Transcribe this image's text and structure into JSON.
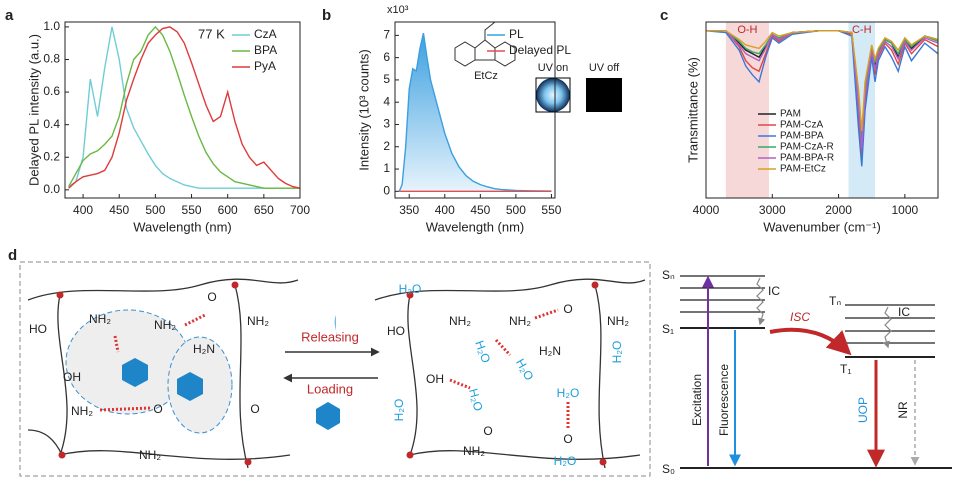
{
  "chart_data": [
    {
      "type": "line",
      "label": "a",
      "xlabel": "Wavelength (nm)",
      "ylabel": "Delayed PL intensity (a.u.)",
      "annotation": "77 K",
      "legend": "upper right",
      "xlim": [
        375,
        700
      ],
      "ylim": [
        -0.05,
        1.03
      ],
      "xticks": [
        400,
        450,
        500,
        550,
        600,
        650,
        700
      ],
      "yticks": [
        {
          "value": 0,
          "label": "0.0"
        },
        {
          "value": 0.2,
          "label": "0.2"
        },
        {
          "value": 0.4,
          "label": "0.4"
        },
        {
          "value": 0.6,
          "label": "0.6"
        },
        {
          "value": 0.8,
          "label": "0.8"
        },
        {
          "value": 1,
          "label": "1.0"
        }
      ],
      "x": [
        380,
        390,
        400,
        410,
        420,
        430,
        440,
        450,
        460,
        470,
        480,
        490,
        500,
        510,
        520,
        530,
        540,
        550,
        560,
        570,
        580,
        590,
        600,
        610,
        620,
        630,
        640,
        650,
        660,
        670,
        680,
        690,
        700
      ],
      "series": [
        {
          "name": "CzA",
          "color": "#6fcdd6",
          "values": [
            0.02,
            0.05,
            0.2,
            0.68,
            0.45,
            0.75,
            1.0,
            0.8,
            0.5,
            0.38,
            0.3,
            0.22,
            0.15,
            0.1,
            0.07,
            0.05,
            0.03,
            0.02,
            0.01,
            0.01,
            0.01,
            0.01,
            0.01,
            0.01,
            0.01,
            0.01,
            0.01,
            0.01,
            0.01,
            0.01,
            0.01,
            0.01,
            0.01
          ]
        },
        {
          "name": "BPA",
          "color": "#6ab845",
          "values": [
            0.02,
            0.1,
            0.18,
            0.22,
            0.24,
            0.28,
            0.33,
            0.45,
            0.65,
            0.8,
            0.85,
            0.95,
            1.0,
            0.95,
            0.85,
            0.72,
            0.58,
            0.45,
            0.33,
            0.23,
            0.16,
            0.11,
            0.08,
            0.05,
            0.04,
            0.03,
            0.02,
            0.01,
            0.01,
            0.01,
            0.01,
            0.01,
            0.01
          ]
        },
        {
          "name": "PyA",
          "color": "#e03a3a",
          "values": [
            0.01,
            0.05,
            0.08,
            0.09,
            0.1,
            0.12,
            0.2,
            0.35,
            0.55,
            0.68,
            0.8,
            0.9,
            0.95,
            0.99,
            1.0,
            0.97,
            0.9,
            0.78,
            0.65,
            0.52,
            0.42,
            0.45,
            0.6,
            0.42,
            0.28,
            0.2,
            0.15,
            0.17,
            0.12,
            0.07,
            0.04,
            0.02,
            0.01
          ]
        }
      ]
    },
    {
      "type": "area",
      "label": "b",
      "multiplier": "x10³",
      "xlabel": "Wavelength (nm)",
      "ylabel": "Intensity (10³ counts)",
      "legend": "upper right",
      "xlim": [
        330,
        555
      ],
      "ylim": [
        -0.3,
        7.6
      ],
      "xticks": [
        350,
        400,
        450,
        500,
        550
      ],
      "yticks": [
        0,
        1,
        2,
        3,
        4,
        5,
        6,
        7
      ],
      "x": [
        336,
        340,
        345,
        350,
        355,
        360,
        365,
        370,
        375,
        380,
        390,
        400,
        410,
        420,
        430,
        440,
        450,
        460,
        470,
        480,
        500,
        520,
        550
      ],
      "series": [
        {
          "name": "PL",
          "color": "#3b9fe0",
          "values": [
            0,
            0.3,
            2.0,
            4.6,
            5.5,
            5.4,
            6.4,
            7.1,
            6.0,
            5.0,
            3.8,
            2.6,
            1.7,
            1.1,
            0.7,
            0.45,
            0.3,
            0.2,
            0.12,
            0.08,
            0.04,
            0.02,
            0.01
          ]
        },
        {
          "name": "Delayed PL",
          "color": "#e05050",
          "values": [
            0,
            0,
            0,
            0,
            0,
            0,
            0,
            0,
            0,
            0,
            0,
            0,
            0,
            0,
            0,
            0,
            0,
            0,
            0,
            0,
            0,
            0,
            0
          ]
        }
      ],
      "insets": {
        "molecule": "EtCz",
        "uv_on": "UV on",
        "uv_off": "UV off"
      }
    },
    {
      "type": "line",
      "label": "c",
      "xlabel": "Wavenumber (cm⁻¹)",
      "ylabel": "Transmittance (%)",
      "legend": "lower left",
      "xlim": [
        4000,
        500
      ],
      "ylim": [
        0,
        100
      ],
      "xticks": [
        4000,
        3000,
        2000,
        1000
      ],
      "bands": [
        {
          "label": "O-H",
          "range": [
            3700,
            3050
          ],
          "color": "#f6d8d8"
        },
        {
          "label": "C-H",
          "range": [
            1850,
            1450
          ],
          "color": "#d4eaf6"
        }
      ],
      "x": [
        4000,
        3700,
        3500,
        3400,
        3300,
        3200,
        3100,
        3000,
        2900,
        2700,
        2300,
        2000,
        1800,
        1700,
        1650,
        1600,
        1500,
        1450,
        1400,
        1300,
        1200,
        1100,
        1000,
        900,
        700,
        500
      ],
      "series": [
        {
          "name": "PAM",
          "color": "#222222",
          "values": [
            95,
            95,
            88,
            84,
            82,
            80,
            86,
            93,
            90,
            94,
            95,
            95,
            94,
            55,
            30,
            60,
            85,
            75,
            82,
            90,
            88,
            80,
            90,
            85,
            92,
            90
          ]
        },
        {
          "name": "PAM-CzA",
          "color": "#e04848",
          "values": [
            95,
            95,
            86,
            78,
            74,
            72,
            82,
            92,
            89,
            94,
            95,
            95,
            93,
            45,
            22,
            55,
            82,
            70,
            80,
            88,
            84,
            76,
            88,
            82,
            90,
            86
          ]
        },
        {
          "name": "PAM-BPA",
          "color": "#3a78d8",
          "values": [
            95,
            94,
            84,
            75,
            70,
            66,
            80,
            91,
            88,
            93,
            95,
            95,
            92,
            40,
            18,
            50,
            80,
            66,
            78,
            86,
            80,
            72,
            86,
            78,
            88,
            82
          ]
        },
        {
          "name": "PAM-CzA-R",
          "color": "#3aa86a",
          "values": [
            95,
            95,
            89,
            85,
            83,
            82,
            87,
            93,
            91,
            94,
            95,
            95,
            94,
            58,
            34,
            63,
            86,
            77,
            84,
            90,
            88,
            82,
            90,
            86,
            92,
            89
          ]
        },
        {
          "name": "PAM-BPA-R",
          "color": "#b060c8",
          "values": [
            95,
            95,
            87,
            82,
            80,
            78,
            85,
            93,
            90,
            94,
            95,
            95,
            94,
            52,
            28,
            58,
            84,
            73,
            82,
            89,
            86,
            79,
            89,
            84,
            91,
            88
          ]
        },
        {
          "name": "PAM-EtCz",
          "color": "#d8a020",
          "values": [
            95,
            95,
            90,
            87,
            86,
            85,
            89,
            94,
            92,
            94,
            95,
            95,
            94,
            62,
            38,
            66,
            87,
            79,
            85,
            91,
            89,
            84,
            91,
            87,
            92,
            90
          ]
        }
      ]
    }
  ],
  "diagram": {
    "label": "d",
    "left": [
      "HO",
      "NH₂",
      "OH",
      "NH₂",
      "H₂N",
      "NH₂",
      "O",
      "NH₂",
      "O",
      "O",
      "NH₂"
    ],
    "right": [
      "H₂O",
      "HO",
      "NH₂",
      "NH₂",
      "O",
      "NH₂",
      "H₂O",
      "H₂N",
      "H₂O",
      "H₂O",
      "OH",
      "H₂O",
      "H₂O",
      "H₂O",
      "O",
      "NH₂",
      "O",
      "H₂O"
    ],
    "arrows": {
      "release": "Releasing",
      "load": "Loading"
    },
    "jablonski": {
      "sn": "Sₙ",
      "s1": "S₁",
      "s0": "S₀",
      "tn": "Tₙ",
      "t1": "T₁",
      "ic1": "IC",
      "ic2": "IC",
      "isc": "ISC",
      "excitation": "Excitation",
      "fluorescence": "Fluorescence",
      "uop": "UOP",
      "nr": "NR"
    }
  }
}
